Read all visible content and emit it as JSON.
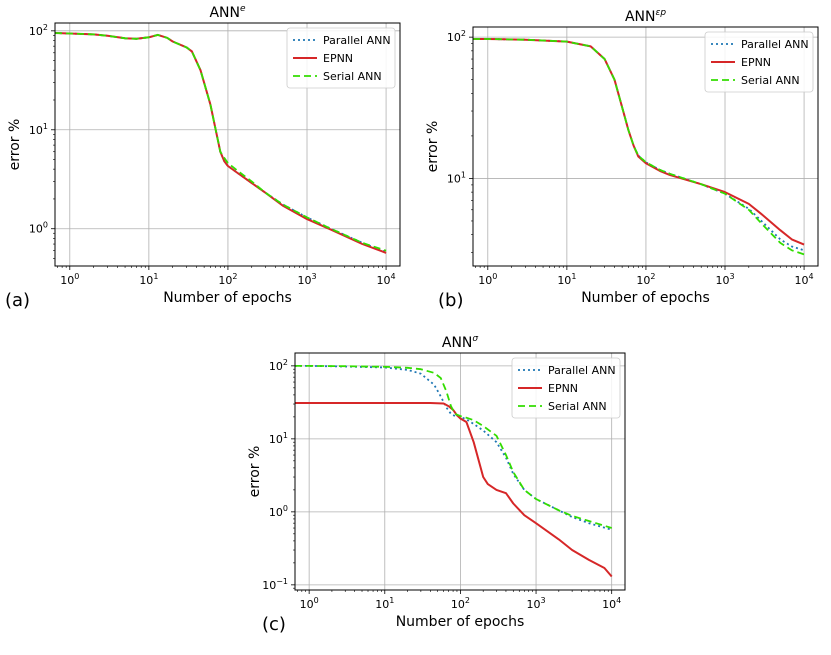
{
  "chart_data": [
    {
      "type": "line",
      "panel": "(a)",
      "title": "ANN",
      "title_sup": "e",
      "xlabel": "Number of epochs",
      "ylabel": "error %",
      "xscale": "log",
      "yscale": "log",
      "xlim": [
        0.65,
        15000
      ],
      "ylim": [
        0.42,
        120
      ],
      "grid": true,
      "legend_position": "top-right",
      "x_ticks": [
        {
          "value": 1,
          "base": "10",
          "exp": "0"
        },
        {
          "value": 10,
          "base": "10",
          "exp": "1"
        },
        {
          "value": 100,
          "base": "10",
          "exp": "2"
        },
        {
          "value": 1000,
          "base": "10",
          "exp": "3"
        },
        {
          "value": 10000,
          "base": "10",
          "exp": "4"
        }
      ],
      "y_ticks": [
        {
          "value": 1,
          "base": "10",
          "exp": "0"
        },
        {
          "value": 10,
          "base": "10",
          "exp": "1"
        },
        {
          "value": 100,
          "base": "10",
          "exp": "2"
        }
      ],
      "series": [
        {
          "name": "Parallel ANN",
          "color": "#1f77b4",
          "dash": "dotted",
          "x": [
            0.65,
            1,
            2,
            3,
            5,
            7,
            10,
            13,
            17,
            20,
            30,
            35,
            45,
            60,
            70,
            80,
            90,
            100,
            130,
            200,
            300,
            500,
            1000,
            2000,
            5000,
            10000
          ],
          "y": [
            95,
            94,
            92,
            89,
            84,
            83,
            86,
            91,
            85,
            78,
            68,
            62,
            40,
            18,
            10,
            6,
            4.8,
            4.3,
            3.7,
            2.9,
            2.3,
            1.75,
            1.3,
            1,
            0.72,
            0.58
          ]
        },
        {
          "name": "EPNN",
          "color": "#d62728",
          "dash": "solid",
          "x": [
            0.65,
            1,
            2,
            3,
            5,
            7,
            10,
            13,
            17,
            20,
            30,
            35,
            45,
            60,
            70,
            80,
            90,
            100,
            130,
            200,
            300,
            500,
            1000,
            2000,
            5000,
            10000
          ],
          "y": [
            95,
            94,
            92,
            89,
            84,
            83,
            86,
            91,
            85,
            78,
            68,
            62,
            40,
            18,
            10,
            6,
            4.8,
            4.3,
            3.7,
            2.9,
            2.3,
            1.7,
            1.25,
            0.98,
            0.7,
            0.57
          ]
        },
        {
          "name": "Serial ANN",
          "color": "#33dd00",
          "dash": "dashed",
          "x": [
            0.65,
            1,
            2,
            3,
            5,
            7,
            10,
            13,
            17,
            20,
            30,
            35,
            45,
            60,
            70,
            80,
            90,
            100,
            130,
            200,
            300,
            500,
            1000,
            2000,
            5000,
            10000
          ],
          "y": [
            95,
            94,
            92,
            89,
            84,
            83,
            86,
            91,
            85,
            78,
            68,
            62,
            40,
            18,
            10,
            6,
            5.2,
            4.6,
            3.9,
            3,
            2.3,
            1.75,
            1.3,
            1,
            0.72,
            0.6
          ]
        }
      ]
    },
    {
      "type": "line",
      "panel": "(b)",
      "title": "ANN",
      "title_sup": "εp",
      "xlabel": "Number of epochs",
      "ylabel": "error %",
      "xscale": "log",
      "yscale": "log",
      "xlim": [
        0.65,
        15000
      ],
      "ylim": [
        2.4,
        118
      ],
      "grid": true,
      "legend_position": "top-right",
      "x_ticks": [
        {
          "value": 1,
          "base": "10",
          "exp": "0"
        },
        {
          "value": 10,
          "base": "10",
          "exp": "1"
        },
        {
          "value": 100,
          "base": "10",
          "exp": "2"
        },
        {
          "value": 1000,
          "base": "10",
          "exp": "3"
        },
        {
          "value": 10000,
          "base": "10",
          "exp": "4"
        }
      ],
      "y_ticks": [
        {
          "value": 10,
          "base": "10",
          "exp": "1"
        },
        {
          "value": 100,
          "base": "10",
          "exp": "2"
        }
      ],
      "series": [
        {
          "name": "Parallel ANN",
          "color": "#1f77b4",
          "dash": "dotted",
          "x": [
            0.65,
            1,
            3,
            10,
            20,
            30,
            40,
            50,
            60,
            70,
            80,
            100,
            150,
            200,
            300,
            500,
            1000,
            2000,
            3000,
            5000,
            7000,
            10000
          ],
          "y": [
            97,
            97,
            96,
            93,
            86,
            70,
            50,
            32,
            22,
            17,
            14.5,
            13,
            11.5,
            10.8,
            10,
            9.1,
            7.8,
            6.1,
            4.9,
            3.7,
            3.3,
            3.1
          ]
        },
        {
          "name": "EPNN",
          "color": "#d62728",
          "dash": "solid",
          "x": [
            0.65,
            1,
            3,
            10,
            20,
            30,
            40,
            50,
            60,
            70,
            80,
            100,
            150,
            200,
            300,
            500,
            1000,
            2000,
            3000,
            5000,
            7000,
            10000
          ],
          "y": [
            97,
            97,
            96,
            93,
            86,
            70,
            50,
            32,
            22,
            17,
            14.3,
            12.8,
            11.3,
            10.6,
            9.9,
            9.1,
            8,
            6.6,
            5.5,
            4.3,
            3.7,
            3.4
          ]
        },
        {
          "name": "Serial ANN",
          "color": "#33dd00",
          "dash": "dashed",
          "x": [
            0.65,
            1,
            3,
            10,
            20,
            30,
            40,
            50,
            60,
            70,
            80,
            100,
            150,
            200,
            300,
            500,
            1000,
            2000,
            3000,
            5000,
            7000,
            10000
          ],
          "y": [
            97,
            97,
            96,
            93,
            86,
            70,
            50,
            32,
            22,
            17,
            14.5,
            13,
            11.5,
            10.8,
            10,
            9.1,
            7.8,
            6,
            4.7,
            3.5,
            3.1,
            2.9
          ]
        }
      ]
    },
    {
      "type": "line",
      "panel": "(c)",
      "title": "ANN",
      "title_sup": "σ",
      "xlabel": "Number of epochs",
      "ylabel": "error %",
      "xscale": "log",
      "yscale": "log",
      "xlim": [
        0.65,
        15000
      ],
      "ylim": [
        0.085,
        150
      ],
      "grid": true,
      "legend_position": "top-right",
      "x_ticks": [
        {
          "value": 1,
          "base": "10",
          "exp": "0"
        },
        {
          "value": 10,
          "base": "10",
          "exp": "1"
        },
        {
          "value": 100,
          "base": "10",
          "exp": "2"
        },
        {
          "value": 1000,
          "base": "10",
          "exp": "3"
        },
        {
          "value": 10000,
          "base": "10",
          "exp": "4"
        }
      ],
      "y_ticks": [
        {
          "value": 0.1,
          "base": "10",
          "exp": "−1"
        },
        {
          "value": 1,
          "base": "10",
          "exp": "0"
        },
        {
          "value": 10,
          "base": "10",
          "exp": "1"
        },
        {
          "value": 100,
          "base": "10",
          "exp": "2"
        }
      ],
      "series": [
        {
          "name": "Parallel ANN",
          "color": "#1f77b4",
          "dash": "dotted",
          "x": [
            0.65,
            1,
            3,
            10,
            20,
            30,
            45,
            55,
            65,
            75,
            85,
            100,
            120,
            150,
            200,
            300,
            400,
            500,
            700,
            1000,
            2000,
            3000,
            5000,
            10000
          ],
          "y": [
            100,
            100,
            98,
            95,
            88,
            78,
            55,
            38,
            27,
            22,
            20.5,
            20,
            18.5,
            16,
            13,
            9,
            5.5,
            3.3,
            2,
            1.5,
            1.05,
            0.85,
            0.7,
            0.57
          ]
        },
        {
          "name": "EPNN",
          "color": "#d62728",
          "dash": "solid",
          "x": [
            0.65,
            1,
            3,
            10,
            20,
            40,
            60,
            70,
            80,
            90,
            100,
            120,
            150,
            200,
            230,
            300,
            400,
            500,
            700,
            1000,
            2000,
            3000,
            5000,
            8000,
            10000
          ],
          "y": [
            31,
            31,
            31,
            31,
            31,
            31,
            30.5,
            28,
            25,
            21,
            19,
            17,
            9,
            3,
            2.4,
            2,
            1.8,
            1.3,
            0.9,
            0.7,
            0.42,
            0.3,
            0.22,
            0.17,
            0.13
          ]
        },
        {
          "name": "Serial ANN",
          "color": "#33dd00",
          "dash": "dashed",
          "x": [
            0.65,
            1,
            3,
            10,
            20,
            30,
            45,
            55,
            65,
            75,
            85,
            100,
            120,
            150,
            200,
            300,
            400,
            500,
            700,
            1000,
            2000,
            3000,
            5000,
            10000
          ],
          "y": [
            100,
            100,
            99,
            97,
            94,
            90,
            80,
            68,
            45,
            28,
            22,
            20.5,
            19.5,
            18,
            15,
            11,
            6,
            3.5,
            2,
            1.5,
            1.05,
            0.88,
            0.75,
            0.6
          ]
        }
      ]
    }
  ]
}
